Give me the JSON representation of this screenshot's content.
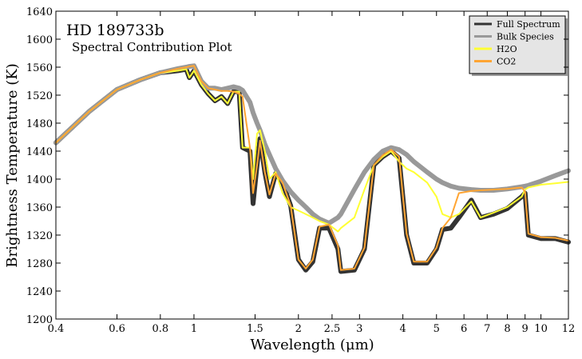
{
  "chart_data": {
    "type": "line",
    "title": "HD 189733b",
    "subtitle": "Spectral Contribution Plot",
    "x_label": "Wavelength (μm)",
    "y_label": "Brightness Temperature (K)",
    "x_scale": "log",
    "legend": "upper right",
    "x": [
      0.4,
      0.5,
      0.6,
      0.7,
      0.8,
      0.9,
      0.95,
      0.97,
      1.0,
      1.05,
      1.1,
      1.15,
      1.2,
      1.25,
      1.3,
      1.35,
      1.38,
      1.45,
      1.48,
      1.52,
      1.55,
      1.6,
      1.65,
      1.72,
      1.8,
      1.9,
      2.0,
      2.1,
      2.2,
      2.3,
      2.45,
      2.6,
      2.65,
      2.9,
      3.1,
      3.3,
      3.5,
      3.7,
      3.9,
      4.1,
      4.3,
      4.7,
      5.0,
      5.2,
      5.5,
      5.8,
      6.3,
      6.7,
      7.3,
      8.0,
      8.8,
      9.0,
      9.2,
      10,
      11,
      12
    ],
    "series": [
      {
        "name": "Full Spectrum",
        "color": "#333333",
        "width": 6,
        "values": [
          1452,
          1497,
          1528,
          1542,
          1552,
          1555,
          1557,
          1545,
          1555,
          1535,
          1522,
          1512,
          1518,
          1508,
          1525,
          1525,
          1445,
          1440,
          1365,
          1420,
          1458,
          1410,
          1375,
          1408,
          1395,
          1362,
          1285,
          1270,
          1282,
          1330,
          1330,
          1300,
          1268,
          1270,
          1300,
          1420,
          1432,
          1440,
          1430,
          1320,
          1280,
          1280,
          1300,
          1328,
          1330,
          1345,
          1370,
          1345,
          1350,
          1358,
          1375,
          1380,
          1320,
          1315,
          1315,
          1310
        ]
      },
      {
        "name": "Bulk Species",
        "color": "#999999",
        "width": 6,
        "values": [
          1452,
          1497,
          1528,
          1542,
          1552,
          1558,
          1560,
          1561,
          1562,
          1540,
          1530,
          1530,
          1528,
          1530,
          1532,
          1530,
          1527,
          1510,
          1495,
          1480,
          1470,
          1450,
          1435,
          1415,
          1398,
          1382,
          1370,
          1360,
          1350,
          1343,
          1337,
          1345,
          1350,
          1385,
          1410,
          1428,
          1440,
          1445,
          1442,
          1435,
          1425,
          1410,
          1400,
          1395,
          1390,
          1387,
          1385,
          1384,
          1384,
          1386,
          1389,
          1390,
          1391,
          1397,
          1405,
          1412
        ]
      },
      {
        "name": "H2O",
        "color": "#ffff33",
        "width": 2,
        "values": [
          1452,
          1497,
          1528,
          1542,
          1552,
          1555,
          1557,
          1545,
          1555,
          1535,
          1522,
          1512,
          1518,
          1508,
          1525,
          1525,
          1445,
          1445,
          1400,
          1465,
          1470,
          1440,
          1400,
          1410,
          1380,
          1360,
          1355,
          1350,
          1345,
          1340,
          1335,
          1325,
          1330,
          1345,
          1385,
          1420,
          1432,
          1440,
          1425,
          1415,
          1410,
          1395,
          1375,
          1350,
          1345,
          1350,
          1368,
          1345,
          1352,
          1360,
          1375,
          1385,
          1388,
          1392,
          1394,
          1396
        ]
      },
      {
        "name": "CO2",
        "color": "#ffa533",
        "width": 2,
        "values": [
          1452,
          1497,
          1528,
          1542,
          1552,
          1558,
          1560,
          1561,
          1562,
          1540,
          1530,
          1528,
          1526,
          1526,
          1525,
          1522,
          1518,
          1445,
          1380,
          1420,
          1455,
          1410,
          1378,
          1408,
          1395,
          1362,
          1285,
          1272,
          1285,
          1332,
          1335,
          1305,
          1270,
          1272,
          1302,
          1420,
          1434,
          1442,
          1432,
          1322,
          1282,
          1282,
          1302,
          1330,
          1345,
          1380,
          1383,
          1384,
          1385,
          1386,
          1388,
          1382,
          1322,
          1317,
          1316,
          1312
        ]
      }
    ],
    "xlim": [
      0.4,
      12
    ],
    "ylim": [
      1200,
      1640
    ],
    "xticks": [
      0.4,
      0.6,
      0.8,
      1,
      1.5,
      2,
      2.5,
      3,
      4,
      5,
      6,
      7,
      8,
      9,
      10,
      12
    ],
    "yticks": [
      1200,
      1240,
      1280,
      1320,
      1360,
      1400,
      1440,
      1480,
      1520,
      1560,
      1600,
      1640
    ]
  }
}
